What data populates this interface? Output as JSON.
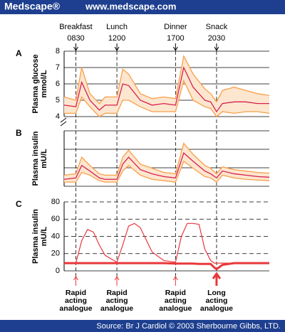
{
  "header": {
    "brand": "Medscape®",
    "url": "www.medscape.com"
  },
  "footer": "Source: Br J Cardiol © 2003 Sherbourne Gibbs, LTD.",
  "meals": [
    {
      "name": "Breakfast",
      "time": "0830",
      "x": 8.5
    },
    {
      "name": "Lunch",
      "time": "1200",
      "x": 12
    },
    {
      "name": "Dinner",
      "time": "1700",
      "x": 17
    },
    {
      "name": "Snack",
      "time": "2030",
      "x": 20.5
    }
  ],
  "chart_data": [
    {
      "type": "band-line",
      "panel": "A",
      "ylabel": [
        "Plasma glucose",
        "mmol/L"
      ],
      "grid": "solid",
      "xlim": [
        7.5,
        25
      ],
      "ylim": [
        4,
        8
      ],
      "yticks": [
        4,
        5,
        6,
        7,
        8
      ],
      "x": [
        7.5,
        8.5,
        9,
        9.7,
        10.5,
        11,
        12,
        12.5,
        13,
        14,
        15,
        16,
        17,
        17.7,
        18.5,
        19.5,
        20,
        20.5,
        21,
        22,
        23,
        24,
        25
      ],
      "range": {
        "color": "#f7a04a",
        "fill": "#fde6cf",
        "upper": [
          5.2,
          5,
          7,
          5.4,
          4.8,
          5.2,
          5.2,
          6.9,
          6.6,
          5.4,
          5.1,
          5.2,
          5.1,
          7.7,
          6.6,
          5.7,
          5.4,
          4.9,
          5.6,
          5.8,
          5.6,
          5.4,
          5.3
        ],
        "lower": [
          4.2,
          4.2,
          5.2,
          4.6,
          4,
          4.2,
          4.2,
          5,
          5,
          4.6,
          4.3,
          4.3,
          4.3,
          6.2,
          5,
          4.6,
          4.5,
          4,
          4.3,
          4.2,
          4.3,
          4.3,
          4.2
        ]
      },
      "series": [
        {
          "color": "#d6204f",
          "values": [
            4.7,
            4.6,
            6.1,
            5,
            4.4,
            4.7,
            4.7,
            6,
            5.9,
            5,
            4.7,
            4.8,
            4.7,
            7,
            5.8,
            5,
            4.9,
            4.3,
            4.8,
            4.9,
            4.9,
            4.8,
            4.8
          ]
        }
      ]
    },
    {
      "type": "band-line",
      "panel": "B",
      "ylabel": [
        "Plasma insulin",
        "mU/L"
      ],
      "grid": "solid",
      "xlim": [
        7.5,
        25
      ],
      "ylim": [
        0,
        80
      ],
      "x": [
        7.5,
        8.5,
        9,
        9.7,
        10.5,
        11,
        12,
        12.5,
        13,
        14,
        15,
        16,
        17,
        17.7,
        18.5,
        19.5,
        20,
        20.5,
        21,
        22,
        23,
        24,
        25
      ],
      "range": {
        "color": "#f7a04a",
        "fill": "#fde6cf",
        "upper": [
          16,
          18,
          42,
          30,
          18,
          16,
          16,
          42,
          52,
          32,
          26,
          20,
          18,
          62,
          46,
          30,
          26,
          18,
          28,
          24,
          22,
          20,
          19
        ],
        "lower": [
          6,
          6,
          20,
          16,
          8,
          6,
          6,
          22,
          30,
          16,
          10,
          8,
          6,
          36,
          26,
          14,
          12,
          6,
          16,
          12,
          10,
          9,
          8
        ]
      },
      "series": [
        {
          "color": "#d6204f",
          "values": [
            10,
            12,
            30,
            22,
            12,
            10,
            10,
            32,
            42,
            24,
            18,
            14,
            12,
            48,
            36,
            22,
            18,
            12,
            22,
            18,
            16,
            14,
            13
          ]
        }
      ]
    },
    {
      "type": "line",
      "panel": "C",
      "ylabel": [
        "Plasma insulin",
        "mU/L"
      ],
      "grid": "dashed",
      "xlim": [
        7.5,
        25
      ],
      "ylim": [
        0,
        80
      ],
      "yticks": [
        0,
        20,
        40,
        60,
        80
      ],
      "x": [
        7.5,
        8.5,
        9,
        9.5,
        10,
        10.5,
        11,
        12,
        12.5,
        13,
        13.5,
        14,
        15,
        16,
        17,
        17.5,
        18,
        18.5,
        19,
        19.5,
        20,
        20.3,
        20.5,
        21,
        22,
        23,
        24,
        25
      ],
      "series": [
        {
          "color": "#e8383b",
          "width": 1.2,
          "values": [
            9,
            9,
            35,
            48,
            45,
            30,
            18,
            10,
            30,
            52,
            55,
            50,
            22,
            12,
            10,
            40,
            55,
            55,
            54,
            25,
            12,
            9,
            9,
            9,
            9,
            9,
            9,
            9
          ]
        },
        {
          "color": "#e8383b",
          "width": 3,
          "values": [
            9,
            9,
            9,
            9,
            9,
            9,
            9,
            9,
            9,
            9,
            9,
            9,
            9,
            9,
            8.5,
            8.5,
            8.5,
            8.5,
            8,
            8,
            8,
            4,
            2,
            7,
            9,
            9,
            9,
            9
          ]
        }
      ],
      "annotations": [
        {
          "text": [
            "Rapid",
            "acting",
            "analogue"
          ],
          "x": 8.5
        },
        {
          "text": [
            "Rapid",
            "acting",
            "analogue"
          ],
          "x": 12
        },
        {
          "text": [
            "Rapid",
            "acting",
            "analogue"
          ],
          "x": 17
        },
        {
          "text": [
            "Long",
            "acting",
            "analogue"
          ],
          "x": 20.5,
          "bold_arrow": true
        }
      ]
    }
  ]
}
